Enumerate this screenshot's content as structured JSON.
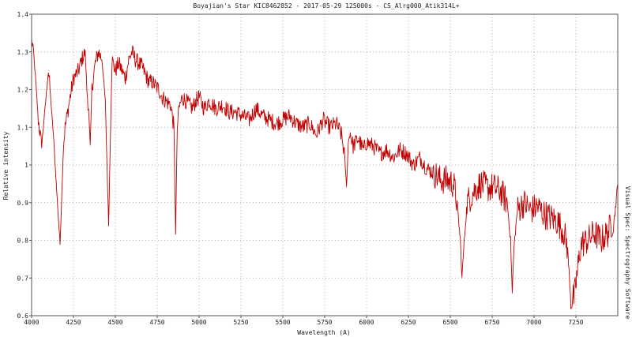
{
  "chart_data": {
    "type": "line",
    "title": "Boyajian's Star  KIC8462852 - 2017-05-29 125000s - CS_Alrg000_Atik314L+",
    "xlabel": "Wavelength (A)",
    "ylabel": "Relative intensity",
    "side_label": "Visual Spec: Spectrography Software",
    "xlim": [
      4000,
      7500
    ],
    "ylim": [
      0.6,
      1.4
    ],
    "xticks": [
      "4000",
      "4250",
      "4500",
      "4750",
      "5000",
      "5250",
      "5500",
      "5750",
      "6000",
      "6250",
      "6500",
      "6750",
      "7000",
      "7250"
    ],
    "yticks": [
      "0.6",
      "0.7",
      "0.8",
      "0.9",
      "1",
      "1.1",
      "1.2",
      "1.3",
      "1.4"
    ],
    "grid": true,
    "series": [
      {
        "color": "#c00000",
        "x": [
          4000,
          4010,
          4025,
          4040,
          4060,
          4080,
          4100,
          4110,
          4130,
          4150,
          4170,
          4190,
          4200,
          4230,
          4250,
          4280,
          4300,
          4320,
          4330,
          4340,
          4350,
          4360,
          4380,
          4400,
          4420,
          4440,
          4460,
          4480,
          4500,
          4520,
          4540,
          4560,
          4580,
          4600,
          4620,
          4640,
          4660,
          4680,
          4700,
          4720,
          4740,
          4760,
          4780,
          4800,
          4830,
          4850,
          4860,
          4870,
          4880,
          4900,
          4920,
          4940,
          4960,
          4980,
          5000,
          5030,
          5060,
          5100,
          5140,
          5180,
          5220,
          5260,
          5300,
          5340,
          5380,
          5420,
          5460,
          5500,
          5540,
          5580,
          5620,
          5660,
          5700,
          5740,
          5780,
          5820,
          5850,
          5870,
          5880,
          5890,
          5900,
          5920,
          5950,
          5980,
          6000,
          6040,
          6080,
          6120,
          6160,
          6200,
          6240,
          6280,
          6320,
          6360,
          6400,
          6440,
          6480,
          6520,
          6540,
          6560,
          6570,
          6580,
          6600,
          6640,
          6680,
          6720,
          6760,
          6800,
          6840,
          6860,
          6870,
          6880,
          6900,
          6940,
          6980,
          7020,
          7060,
          7100,
          7140,
          7180,
          7200,
          7220,
          7240,
          7260,
          7280,
          7320,
          7360,
          7400,
          7440,
          7480,
          7500
        ],
        "y": [
          1.33,
          1.31,
          1.22,
          1.12,
          1.05,
          1.15,
          1.25,
          1.2,
          1.08,
          0.93,
          0.79,
          1.05,
          1.1,
          1.18,
          1.23,
          1.25,
          1.28,
          1.3,
          1.2,
          1.15,
          1.05,
          1.2,
          1.27,
          1.3,
          1.28,
          1.17,
          0.84,
          1.28,
          1.25,
          1.27,
          1.25,
          1.23,
          1.28,
          1.3,
          1.28,
          1.27,
          1.26,
          1.24,
          1.22,
          1.22,
          1.21,
          1.2,
          1.18,
          1.17,
          1.16,
          1.1,
          0.82,
          1.1,
          1.15,
          1.18,
          1.17,
          1.16,
          1.15,
          1.17,
          1.18,
          1.15,
          1.17,
          1.15,
          1.16,
          1.14,
          1.14,
          1.13,
          1.12,
          1.15,
          1.13,
          1.12,
          1.11,
          1.12,
          1.13,
          1.11,
          1.1,
          1.11,
          1.08,
          1.12,
          1.1,
          1.11,
          1.08,
          1.02,
          0.94,
          1.05,
          1.09,
          1.05,
          1.07,
          1.04,
          1.06,
          1.05,
          1.03,
          1.04,
          1.02,
          1.04,
          1.03,
          1.0,
          1.02,
          0.99,
          0.98,
          0.96,
          0.96,
          0.95,
          0.9,
          0.8,
          0.7,
          0.78,
          0.9,
          0.93,
          0.95,
          0.94,
          0.94,
          0.93,
          0.9,
          0.8,
          0.66,
          0.78,
          0.88,
          0.9,
          0.88,
          0.89,
          0.87,
          0.86,
          0.85,
          0.82,
          0.78,
          0.64,
          0.65,
          0.72,
          0.79,
          0.8,
          0.82,
          0.8,
          0.82,
          0.86,
          0.95
        ]
      }
    ]
  }
}
